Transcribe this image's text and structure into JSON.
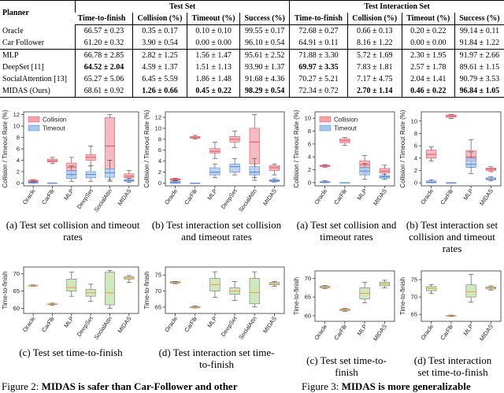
{
  "table": {
    "corner": "Planner",
    "groups": [
      "Test Set",
      "Test Interaction Set"
    ],
    "columns": [
      "Time-to-finish",
      "Collision (%)",
      "Timeout (%)",
      "Success (%)",
      "Time-to-finish",
      "Collision (%)",
      "Timeout (%)",
      "Success (%)"
    ],
    "rows": [
      {
        "planner": "Oracle",
        "cells": [
          "66.57 ± 0.23",
          "0.35 ± 0.17",
          "0.10 ± 0.10",
          "99.55 ± 0.17",
          "72.68 ± 0.27",
          "0.66 ± 0.13",
          "0.20 ± 0.22",
          "99.14 ± 0.11"
        ],
        "bold": []
      },
      {
        "planner": "Car Follower",
        "cells": [
          "61.20 ± 0.32",
          "3.90 ± 0.54",
          "0.00 ± 0.00",
          "96.10 ± 0.54",
          "64.91 ± 0.11",
          "8.16 ± 1.22",
          "0.00 ± 0.00",
          "91.84 ± 1.22"
        ],
        "bold": []
      },
      {
        "planner": "MLP",
        "cells": [
          "66.78 ± 2.85",
          "2.82 ± 1.25",
          "1.56 ± 1.47",
          "95.61 ± 2.52",
          "71.88 ± 3.30",
          "5.72 ± 1.69",
          "2.30 ± 1.95",
          "91.97 ± 2.66"
        ],
        "bold": []
      },
      {
        "planner": "DeepSet [11]",
        "cells": [
          "64.52 ± 2.04",
          "4.59 ± 1.37",
          "1.51 ± 1.13",
          "93.90 ± 1.37",
          "69.97 ± 3.35",
          "7.83 ± 1.81",
          "2.57 ± 1.78",
          "89.61 ± 1.15"
        ],
        "bold": [
          0,
          4
        ]
      },
      {
        "planner": "SocialAttention [13]",
        "cells": [
          "65.27 ± 5.06",
          "6.45 ± 5.59",
          "1.86 ± 1.48",
          "91.68 ± 4.36",
          "70.27 ± 5.21",
          "7.17 ± 4.75",
          "2.04 ± 1.41",
          "90.79 ± 3.53"
        ],
        "bold": []
      },
      {
        "planner": "MIDAS (Ours)",
        "cells": [
          "68.61 ± 0.92",
          "1.26 ± 0.66",
          "0.45 ± 0.22",
          "98.29 ± 0.54",
          "72.34 ± 0.72",
          "2.70 ± 1.14",
          "0.46 ± 0.22",
          "96.84 ± 1.05"
        ],
        "bold": [
          1,
          2,
          3,
          5,
          6,
          7
        ]
      }
    ]
  },
  "chart_data": [
    {
      "type": "box",
      "caption": "(a) Test set collision and timeout rates",
      "y_label": "Collision / Timeout Rate (%)",
      "categories": [
        "Oracle",
        "CarFllr",
        "MLP",
        "DeepSet",
        "SocialAttn",
        "MIDAS"
      ],
      "ylim": [
        -0.5,
        12.5
      ],
      "yticks": [
        0,
        2,
        4,
        6,
        8,
        10,
        12
      ],
      "legend": "upper left",
      "series": [
        {
          "name": "Collision",
          "color": "#f4a3ab",
          "boxes": [
            [
              0.1,
              0.2,
              0.35,
              0.5,
              0.6
            ],
            [
              3.4,
              3.7,
              3.9,
              4.2,
              4.5
            ],
            [
              1.2,
              2,
              2.8,
              3.5,
              4.5
            ],
            [
              3,
              4,
              4.5,
              5,
              6.5
            ],
            [
              0.5,
              2.5,
              6.5,
              11.5,
              12
            ],
            [
              0.5,
              0.9,
              1.2,
              1.6,
              2.2
            ]
          ]
        },
        {
          "name": "Timeout",
          "color": "#a8c6ee",
          "boxes": [
            [
              0,
              0,
              0.05,
              0.15,
              0.3
            ],
            [
              0,
              0,
              0,
              0,
              0
            ],
            [
              0.3,
              0.8,
              1.5,
              2.2,
              3
            ],
            [
              0.3,
              0.9,
              1.5,
              2,
              3
            ],
            [
              0.3,
              1,
              1.8,
              2.5,
              4
            ],
            [
              0.1,
              0.3,
              0.45,
              0.6,
              0.8
            ]
          ]
        }
      ]
    },
    {
      "type": "box",
      "caption": "(b) Test interaction set collision and timeout rates",
      "y_label": "Collision / Timeout Rate (%)",
      "categories": [
        "Oracle",
        "CarFllr",
        "MLP",
        "DeepSet",
        "SocialAttn",
        "MIDAS"
      ],
      "ylim": [
        -0.5,
        13
      ],
      "yticks": [
        0,
        2,
        4,
        6,
        8,
        10,
        12
      ],
      "series": [
        {
          "name": "Collision",
          "color": "#f4a3ab",
          "boxes": [
            [
              0.4,
              0.5,
              0.65,
              0.8,
              0.9
            ],
            [
              8,
              8.2,
              8.3,
              8.5,
              8.7
            ],
            [
              4.5,
              5.5,
              5.8,
              6.3,
              7.5
            ],
            [
              6.5,
              7.5,
              8,
              8.5,
              9.5
            ],
            [
              1,
              3.5,
              7.5,
              10,
              12.5
            ],
            [
              1.5,
              2.3,
              2.8,
              3.2,
              3.5
            ]
          ]
        },
        {
          "name": "Timeout",
          "color": "#a8c6ee",
          "boxes": [
            [
              0,
              0,
              0.1,
              0.3,
              0.5
            ],
            [
              0,
              0,
              0,
              0,
              0
            ],
            [
              1,
              1.5,
              2,
              2.8,
              3.5
            ],
            [
              1.5,
              2,
              3,
              3.5,
              4.5
            ],
            [
              0.5,
              1.5,
              2,
              3,
              4.5
            ],
            [
              0.2,
              0.3,
              0.45,
              0.6,
              0.8
            ]
          ]
        }
      ]
    },
    {
      "type": "box",
      "caption": "(c) Test set time-to-finish",
      "y_label": "Time-to-finish",
      "categories": [
        "Oracle",
        "CarFllr",
        "MLP",
        "DeepSet",
        "SocialAttn",
        "MIDAS"
      ],
      "ylim": [
        58.5,
        72
      ],
      "yticks": [
        60,
        65,
        70
      ],
      "color": "#cfe8bd",
      "boxes": [
        [
          66.4,
          66.5,
          66.6,
          66.7,
          66.8
        ],
        [
          60.9,
          61.1,
          61.2,
          61.3,
          61.5
        ],
        [
          63.5,
          65,
          66,
          68.5,
          70.5
        ],
        [
          62,
          63.5,
          64.5,
          65.5,
          67
        ],
        [
          60,
          61,
          64.5,
          70.5,
          71
        ],
        [
          67.5,
          68.5,
          68.8,
          69.2,
          69.5
        ]
      ]
    },
    {
      "type": "box",
      "caption": "(d) Test interaction set time-to-finish",
      "y_label": "Time-to-finish",
      "categories": [
        "Oracle",
        "CarFllr",
        "MLP",
        "DeepSet",
        "SocialAttn",
        "MIDAS"
      ],
      "ylim": [
        63,
        77.5
      ],
      "yticks": [
        65,
        70,
        75
      ],
      "color": "#cfe8bd",
      "boxes": [
        [
          72.3,
          72.5,
          72.7,
          72.9,
          73
        ],
        [
          64.7,
          64.8,
          64.9,
          65.1,
          65.3
        ],
        [
          68,
          70,
          72,
          74,
          76
        ],
        [
          67,
          69,
          70,
          71,
          73
        ],
        [
          65,
          66,
          69.5,
          74,
          76
        ],
        [
          71.5,
          72,
          72.3,
          72.7,
          73
        ]
      ]
    },
    {
      "type": "box",
      "caption": "(a) Test set collision and timeout rates",
      "y_label": "Collision / Timeout Rate (%)",
      "categories": [
        "Oracle",
        "CarFllr",
        "MLP",
        "MIDAS"
      ],
      "ylim": [
        -0.5,
        11
      ],
      "yticks": [
        0,
        2,
        4,
        6,
        8,
        10
      ],
      "legend": "upper left",
      "series": [
        {
          "name": "Collision",
          "color": "#f4a3ab",
          "boxes": [
            [
              2.4,
              2.5,
              2.6,
              2.7,
              2.8
            ],
            [
              5.8,
              6.2,
              6.5,
              6.8,
              7
            ],
            [
              1.5,
              2.2,
              2.8,
              3.4,
              4.2
            ],
            [
              1,
              1.5,
              1.8,
              2.2,
              2.7
            ]
          ]
        },
        {
          "name": "Timeout",
          "color": "#a8c6ee",
          "boxes": [
            [
              0,
              0,
              0.05,
              0.15,
              0.3
            ],
            [
              0,
              0,
              0,
              0,
              0
            ],
            [
              0.5,
              1.2,
              1.8,
              2.4,
              3
            ],
            [
              0.5,
              0.7,
              0.9,
              1.1,
              1.3
            ]
          ]
        }
      ]
    },
    {
      "type": "box",
      "caption": "(b) Test interaction set collision and timeout rates",
      "y_label": "Collision / Timeout Rate (%)",
      "categories": [
        "Oracle",
        "CarFllr",
        "MLP",
        "MIDAS"
      ],
      "ylim": [
        -0.5,
        11.5
      ],
      "yticks": [
        0,
        2,
        4,
        6,
        8,
        10
      ],
      "series": [
        {
          "name": "Collision",
          "color": "#f4a3ab",
          "boxes": [
            [
              3.5,
              4,
              4.6,
              5.3,
              5.8
            ],
            [
              10.4,
              10.6,
              10.8,
              11,
              11.1
            ],
            [
              2.5,
              3.5,
              4.2,
              5.2,
              7
            ],
            [
              1.8,
              2,
              2.2,
              2.4,
              2.6
            ]
          ]
        },
        {
          "name": "Timeout",
          "color": "#a8c6ee",
          "boxes": [
            [
              0,
              0,
              0.1,
              0.3,
              0.5
            ],
            [
              0,
              0,
              0,
              0,
              0
            ],
            [
              1.5,
              2.5,
              3,
              4,
              5
            ],
            [
              0.3,
              0.5,
              0.6,
              0.8,
              1
            ]
          ]
        }
      ]
    },
    {
      "type": "box",
      "caption": "(c) Test set time-to-finish",
      "y_label": "Time-to-finish",
      "categories": [
        "Oracle",
        "CarFllr",
        "MLP",
        "MIDAS"
      ],
      "ylim": [
        58.5,
        72
      ],
      "yticks": [
        60,
        65,
        70
      ],
      "color": "#cfe8bd",
      "boxes": [
        [
          67.3,
          67.5,
          67.7,
          67.9,
          68.1
        ],
        [
          61.2,
          61.4,
          61.6,
          61.8,
          62
        ],
        [
          63.5,
          64.5,
          66,
          67.5,
          69
        ],
        [
          67.5,
          68,
          68.5,
          69,
          69.5
        ]
      ]
    },
    {
      "type": "box",
      "caption": "(d) Test interaction set time-to-finish",
      "y_label": "Time-to-finish",
      "categories": [
        "Oracle",
        "CarFllr",
        "MLP",
        "MIDAS"
      ],
      "ylim": [
        63,
        77.5
      ],
      "yticks": [
        65,
        70,
        75
      ],
      "color": "#cfe8bd",
      "boxes": [
        [
          71,
          71.8,
          72.5,
          73,
          73.5
        ],
        [
          64.4,
          64.5,
          64.6,
          64.7,
          64.8
        ],
        [
          68.5,
          70,
          71.5,
          73.5,
          76.5
        ],
        [
          72,
          72.3,
          72.6,
          72.9,
          73.2
        ]
      ]
    }
  ],
  "figures": [
    {
      "label": "Figure 2:",
      "text": "MIDAS is safer than Car-Follower and other"
    },
    {
      "label": "Figure 3:",
      "text": "MIDAS is more generalizable"
    }
  ]
}
